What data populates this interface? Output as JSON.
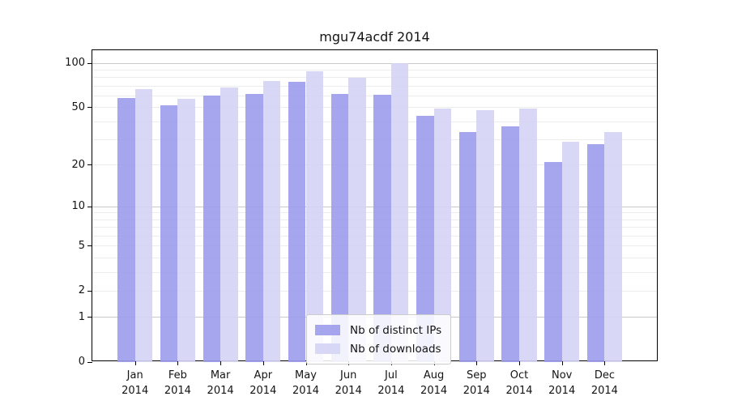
{
  "chart_data": {
    "type": "bar",
    "title": "mgu74acdf 2014",
    "categories": [
      "Jan",
      "Feb",
      "Mar",
      "Apr",
      "May",
      "Jun",
      "Jul",
      "Aug",
      "Sep",
      "Oct",
      "Nov",
      "Dec"
    ],
    "x_tick_second_line": "2014",
    "series": [
      {
        "name": "Nb of distinct IPs",
        "color": "#9c9cec",
        "values": [
          58,
          52,
          60,
          62,
          75,
          62,
          61,
          44,
          34,
          37,
          21,
          28
        ]
      },
      {
        "name": "Nb of downloads",
        "color": "#d4d4f5",
        "values": [
          67,
          57,
          68,
          76,
          88,
          80,
          100,
          49,
          48,
          49,
          29,
          34
        ]
      }
    ],
    "y_scale": "log1p",
    "ylim": [
      0,
      100
    ],
    "y_ticks": [
      100,
      50,
      20,
      10,
      5,
      2,
      1,
      0
    ],
    "gridlines": {
      "major": [
        1,
        10,
        100
      ],
      "minor": [
        2,
        3,
        4,
        5,
        6,
        7,
        8,
        9,
        20,
        30,
        40,
        50,
        60,
        70,
        80,
        90
      ]
    },
    "grid": true,
    "legend_position": "bottom-center",
    "colors": {
      "axis": "#000000",
      "minor_grid": "#ececec",
      "major_grid": "#c9c9c9",
      "legend_border": "#cccccc"
    }
  }
}
